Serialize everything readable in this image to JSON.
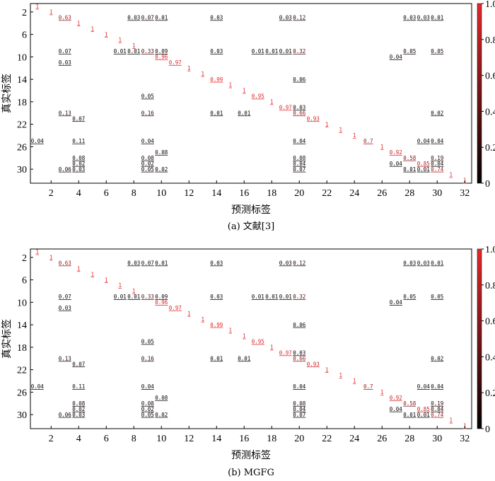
{
  "chart_data": [
    {
      "type": "heatmap",
      "caption": "(a) 文献[3]",
      "xlabel": "预测标签",
      "ylabel": "真实标签",
      "x_ticks": [
        "2",
        "4",
        "6",
        "8",
        "10",
        "12",
        "14",
        "16",
        "18",
        "20",
        "22",
        "24",
        "26",
        "28",
        "30",
        "32"
      ],
      "y_ticks": [
        "2",
        "6",
        "10",
        "14",
        "18",
        "22",
        "26",
        "30"
      ],
      "colorbar_ticks": [
        "0",
        "0.2",
        "0.4",
        "0.6",
        "0.8",
        "1.0"
      ],
      "colorbar_range": [
        0,
        1
      ],
      "colors": {
        "low": "#000000",
        "high": "#e8262a"
      },
      "cells": [
        {
          "r": 1,
          "c": 1,
          "t": "1"
        },
        {
          "r": 2,
          "c": 2,
          "t": "1"
        },
        {
          "r": 3,
          "c": 3,
          "t": "0.63"
        },
        {
          "r": 3,
          "c": 8,
          "t": "0.03"
        },
        {
          "r": 3,
          "c": 9,
          "t": "0.07"
        },
        {
          "r": 3,
          "c": 10,
          "t": "0.01"
        },
        {
          "r": 3,
          "c": 14,
          "t": "0.03"
        },
        {
          "r": 3,
          "c": 19,
          "t": "0.03"
        },
        {
          "r": 3,
          "c": 20,
          "t": "0.12"
        },
        {
          "r": 3,
          "c": 28,
          "t": "0.03"
        },
        {
          "r": 3,
          "c": 29,
          "t": "0.03"
        },
        {
          "r": 3,
          "c": 30,
          "t": "0.01"
        },
        {
          "r": 4,
          "c": 4,
          "t": "1"
        },
        {
          "r": 5,
          "c": 5,
          "t": "1"
        },
        {
          "r": 6,
          "c": 6,
          "t": "1"
        },
        {
          "r": 7,
          "c": 7,
          "t": "1"
        },
        {
          "r": 8,
          "c": 8,
          "t": "1"
        },
        {
          "r": 9,
          "c": 3,
          "t": "0.07"
        },
        {
          "r": 9,
          "c": 7,
          "t": "0.01"
        },
        {
          "r": 9,
          "c": 8,
          "t": "0.01"
        },
        {
          "r": 9,
          "c": 9,
          "t": "0.33"
        },
        {
          "r": 9,
          "c": 10,
          "t": "0.09"
        },
        {
          "r": 9,
          "c": 14,
          "t": "0.03"
        },
        {
          "r": 9,
          "c": 17,
          "t": "0.01"
        },
        {
          "r": 9,
          "c": 18,
          "t": "0.01"
        },
        {
          "r": 9,
          "c": 19,
          "t": "0.01"
        },
        {
          "r": 9,
          "c": 20,
          "t": "0.32"
        },
        {
          "r": 9,
          "c": 28,
          "t": "0.05"
        },
        {
          "r": 9,
          "c": 30,
          "t": "0.05"
        },
        {
          "r": 10,
          "c": 10,
          "t": "0.96"
        },
        {
          "r": 10,
          "c": 27,
          "t": "0.04"
        },
        {
          "r": 11,
          "c": 3,
          "t": "0.03"
        },
        {
          "r": 11,
          "c": 11,
          "t": "0.97"
        },
        {
          "r": 12,
          "c": 12,
          "t": "1"
        },
        {
          "r": 13,
          "c": 13,
          "t": "1"
        },
        {
          "r": 14,
          "c": 14,
          "t": "0.99"
        },
        {
          "r": 14,
          "c": 20,
          "t": "0.06"
        },
        {
          "r": 15,
          "c": 15,
          "t": "1"
        },
        {
          "r": 16,
          "c": 16,
          "t": "1"
        },
        {
          "r": 17,
          "c": 9,
          "t": "0.05"
        },
        {
          "r": 17,
          "c": 17,
          "t": "0.95"
        },
        {
          "r": 18,
          "c": 18,
          "t": "1"
        },
        {
          "r": 19,
          "c": 19,
          "t": "0.97"
        },
        {
          "r": 19,
          "c": 20,
          "t": "0.03"
        },
        {
          "r": 20,
          "c": 3,
          "t": "0.13"
        },
        {
          "r": 20,
          "c": 9,
          "t": "0.16"
        },
        {
          "r": 20,
          "c": 14,
          "t": "0.01"
        },
        {
          "r": 20,
          "c": 16,
          "t": "0.01"
        },
        {
          "r": 20,
          "c": 20,
          "t": "0.66"
        },
        {
          "r": 20,
          "c": 30,
          "t": "0.02"
        },
        {
          "r": 21,
          "c": 4,
          "t": "0.07"
        },
        {
          "r": 21,
          "c": 21,
          "t": "0.93"
        },
        {
          "r": 22,
          "c": 22,
          "t": "1"
        },
        {
          "r": 23,
          "c": 23,
          "t": "1"
        },
        {
          "r": 24,
          "c": 24,
          "t": "1"
        },
        {
          "r": 25,
          "c": 1,
          "t": "0.04"
        },
        {
          "r": 25,
          "c": 4,
          "t": "0.11"
        },
        {
          "r": 25,
          "c": 9,
          "t": "0.04"
        },
        {
          "r": 25,
          "c": 20,
          "t": "0.04"
        },
        {
          "r": 25,
          "c": 25,
          "t": "0.7"
        },
        {
          "r": 25,
          "c": 29,
          "t": "0.04"
        },
        {
          "r": 25,
          "c": 30,
          "t": "0.04"
        },
        {
          "r": 26,
          "c": 26,
          "t": "1"
        },
        {
          "r": 27,
          "c": 10,
          "t": "0.08"
        },
        {
          "r": 27,
          "c": 27,
          "t": "0.92"
        },
        {
          "r": 28,
          "c": 4,
          "t": "0.08"
        },
        {
          "r": 28,
          "c": 9,
          "t": "0.08"
        },
        {
          "r": 28,
          "c": 20,
          "t": "0.08"
        },
        {
          "r": 28,
          "c": 28,
          "t": "0.58"
        },
        {
          "r": 28,
          "c": 30,
          "t": "0.19"
        },
        {
          "r": 29,
          "c": 4,
          "t": "0.02"
        },
        {
          "r": 29,
          "c": 9,
          "t": "0.02"
        },
        {
          "r": 29,
          "c": 20,
          "t": "0.04"
        },
        {
          "r": 29,
          "c": 27,
          "t": "0.04"
        },
        {
          "r": 29,
          "c": 29,
          "t": "0.85"
        },
        {
          "r": 29,
          "c": 30,
          "t": "0.04"
        },
        {
          "r": 30,
          "c": 3,
          "t": "0.06"
        },
        {
          "r": 30,
          "c": 4,
          "t": "0.03"
        },
        {
          "r": 30,
          "c": 9,
          "t": "0.05"
        },
        {
          "r": 30,
          "c": 10,
          "t": "0.02"
        },
        {
          "r": 30,
          "c": 20,
          "t": "0.07"
        },
        {
          "r": 30,
          "c": 28,
          "t": "0.01"
        },
        {
          "r": 30,
          "c": 29,
          "t": "0.01"
        },
        {
          "r": 30,
          "c": 30,
          "t": "0.74"
        },
        {
          "r": 31,
          "c": 31,
          "t": "1"
        },
        {
          "r": 32,
          "c": 32,
          "t": "1"
        }
      ]
    },
    {
      "type": "heatmap",
      "caption": "(b)  MGFG",
      "xlabel": "预测标签",
      "ylabel": "真实标签",
      "x_ticks": [
        "2",
        "4",
        "6",
        "8",
        "10",
        "12",
        "14",
        "16",
        "18",
        "20",
        "22",
        "24",
        "26",
        "28",
        "30",
        "32"
      ],
      "y_ticks": [
        "2",
        "6",
        "10",
        "14",
        "18",
        "22",
        "26",
        "30"
      ],
      "colorbar_ticks": [
        "0",
        "0.2",
        "0.4",
        "0.6",
        "0.8",
        "1.0"
      ],
      "colorbar_range": [
        0,
        1
      ],
      "colors": {
        "low": "#000000",
        "high": "#e8262a"
      },
      "cells": [
        {
          "r": 1,
          "c": 1,
          "t": "1"
        },
        {
          "r": 2,
          "c": 2,
          "t": "1"
        },
        {
          "r": 3,
          "c": 3,
          "t": "0.63"
        },
        {
          "r": 3,
          "c": 8,
          "t": "0.03"
        },
        {
          "r": 3,
          "c": 9,
          "t": "0.07"
        },
        {
          "r": 3,
          "c": 10,
          "t": "0.01"
        },
        {
          "r": 3,
          "c": 14,
          "t": "0.03"
        },
        {
          "r": 3,
          "c": 19,
          "t": "0.03"
        },
        {
          "r": 3,
          "c": 20,
          "t": "0.12"
        },
        {
          "r": 3,
          "c": 28,
          "t": "0.03"
        },
        {
          "r": 3,
          "c": 29,
          "t": "0.03"
        },
        {
          "r": 3,
          "c": 30,
          "t": "0.01"
        },
        {
          "r": 4,
          "c": 4,
          "t": "1"
        },
        {
          "r": 5,
          "c": 5,
          "t": "1"
        },
        {
          "r": 6,
          "c": 6,
          "t": "1"
        },
        {
          "r": 7,
          "c": 7,
          "t": "1"
        },
        {
          "r": 8,
          "c": 8,
          "t": "1"
        },
        {
          "r": 9,
          "c": 3,
          "t": "0.07"
        },
        {
          "r": 9,
          "c": 7,
          "t": "0.01"
        },
        {
          "r": 9,
          "c": 8,
          "t": "0.01"
        },
        {
          "r": 9,
          "c": 9,
          "t": "0.33"
        },
        {
          "r": 9,
          "c": 10,
          "t": "0.09"
        },
        {
          "r": 9,
          "c": 14,
          "t": "0.03"
        },
        {
          "r": 9,
          "c": 17,
          "t": "0.01"
        },
        {
          "r": 9,
          "c": 18,
          "t": "0.01"
        },
        {
          "r": 9,
          "c": 19,
          "t": "0.01"
        },
        {
          "r": 9,
          "c": 20,
          "t": "0.32"
        },
        {
          "r": 9,
          "c": 28,
          "t": "0.05"
        },
        {
          "r": 9,
          "c": 30,
          "t": "0.05"
        },
        {
          "r": 10,
          "c": 10,
          "t": "0.96"
        },
        {
          "r": 10,
          "c": 27,
          "t": "0.04"
        },
        {
          "r": 11,
          "c": 3,
          "t": "0.03"
        },
        {
          "r": 11,
          "c": 11,
          "t": "0.97"
        },
        {
          "r": 12,
          "c": 12,
          "t": "1"
        },
        {
          "r": 13,
          "c": 13,
          "t": "1"
        },
        {
          "r": 14,
          "c": 14,
          "t": "0.99"
        },
        {
          "r": 14,
          "c": 20,
          "t": "0.06"
        },
        {
          "r": 15,
          "c": 15,
          "t": "1"
        },
        {
          "r": 16,
          "c": 16,
          "t": "1"
        },
        {
          "r": 17,
          "c": 9,
          "t": "0.05"
        },
        {
          "r": 17,
          "c": 17,
          "t": "0.95"
        },
        {
          "r": 18,
          "c": 18,
          "t": "1"
        },
        {
          "r": 19,
          "c": 19,
          "t": "0.97"
        },
        {
          "r": 19,
          "c": 20,
          "t": "0.03"
        },
        {
          "r": 20,
          "c": 3,
          "t": "0.13"
        },
        {
          "r": 20,
          "c": 9,
          "t": "0.16"
        },
        {
          "r": 20,
          "c": 14,
          "t": "0.01"
        },
        {
          "r": 20,
          "c": 16,
          "t": "0.01"
        },
        {
          "r": 20,
          "c": 20,
          "t": "0.66"
        },
        {
          "r": 20,
          "c": 30,
          "t": "0.02"
        },
        {
          "r": 21,
          "c": 4,
          "t": "0.07"
        },
        {
          "r": 21,
          "c": 21,
          "t": "0.93"
        },
        {
          "r": 22,
          "c": 22,
          "t": "1"
        },
        {
          "r": 23,
          "c": 23,
          "t": "1"
        },
        {
          "r": 24,
          "c": 24,
          "t": "1"
        },
        {
          "r": 25,
          "c": 1,
          "t": "0.04"
        },
        {
          "r": 25,
          "c": 4,
          "t": "0.11"
        },
        {
          "r": 25,
          "c": 9,
          "t": "0.04"
        },
        {
          "r": 25,
          "c": 20,
          "t": "0.04"
        },
        {
          "r": 25,
          "c": 25,
          "t": "0.7"
        },
        {
          "r": 25,
          "c": 29,
          "t": "0.04"
        },
        {
          "r": 25,
          "c": 30,
          "t": "0.04"
        },
        {
          "r": 26,
          "c": 26,
          "t": "1"
        },
        {
          "r": 27,
          "c": 10,
          "t": "0.08"
        },
        {
          "r": 27,
          "c": 27,
          "t": "0.92"
        },
        {
          "r": 28,
          "c": 4,
          "t": "0.08"
        },
        {
          "r": 28,
          "c": 9,
          "t": "0.08"
        },
        {
          "r": 28,
          "c": 20,
          "t": "0.08"
        },
        {
          "r": 28,
          "c": 28,
          "t": "0.58"
        },
        {
          "r": 28,
          "c": 30,
          "t": "0.19"
        },
        {
          "r": 29,
          "c": 4,
          "t": "0.02"
        },
        {
          "r": 29,
          "c": 9,
          "t": "0.02"
        },
        {
          "r": 29,
          "c": 20,
          "t": "0.04"
        },
        {
          "r": 29,
          "c": 27,
          "t": "0.04"
        },
        {
          "r": 29,
          "c": 29,
          "t": "0.85"
        },
        {
          "r": 29,
          "c": 30,
          "t": "0.04"
        },
        {
          "r": 30,
          "c": 3,
          "t": "0.06"
        },
        {
          "r": 30,
          "c": 4,
          "t": "0.03"
        },
        {
          "r": 30,
          "c": 9,
          "t": "0.05"
        },
        {
          "r": 30,
          "c": 10,
          "t": "0.02"
        },
        {
          "r": 30,
          "c": 20,
          "t": "0.07"
        },
        {
          "r": 30,
          "c": 28,
          "t": "0.01"
        },
        {
          "r": 30,
          "c": 29,
          "t": "0.01"
        },
        {
          "r": 30,
          "c": 30,
          "t": "0.74"
        },
        {
          "r": 31,
          "c": 31,
          "t": "1"
        },
        {
          "r": 32,
          "c": 32,
          "t": "1"
        }
      ]
    }
  ]
}
